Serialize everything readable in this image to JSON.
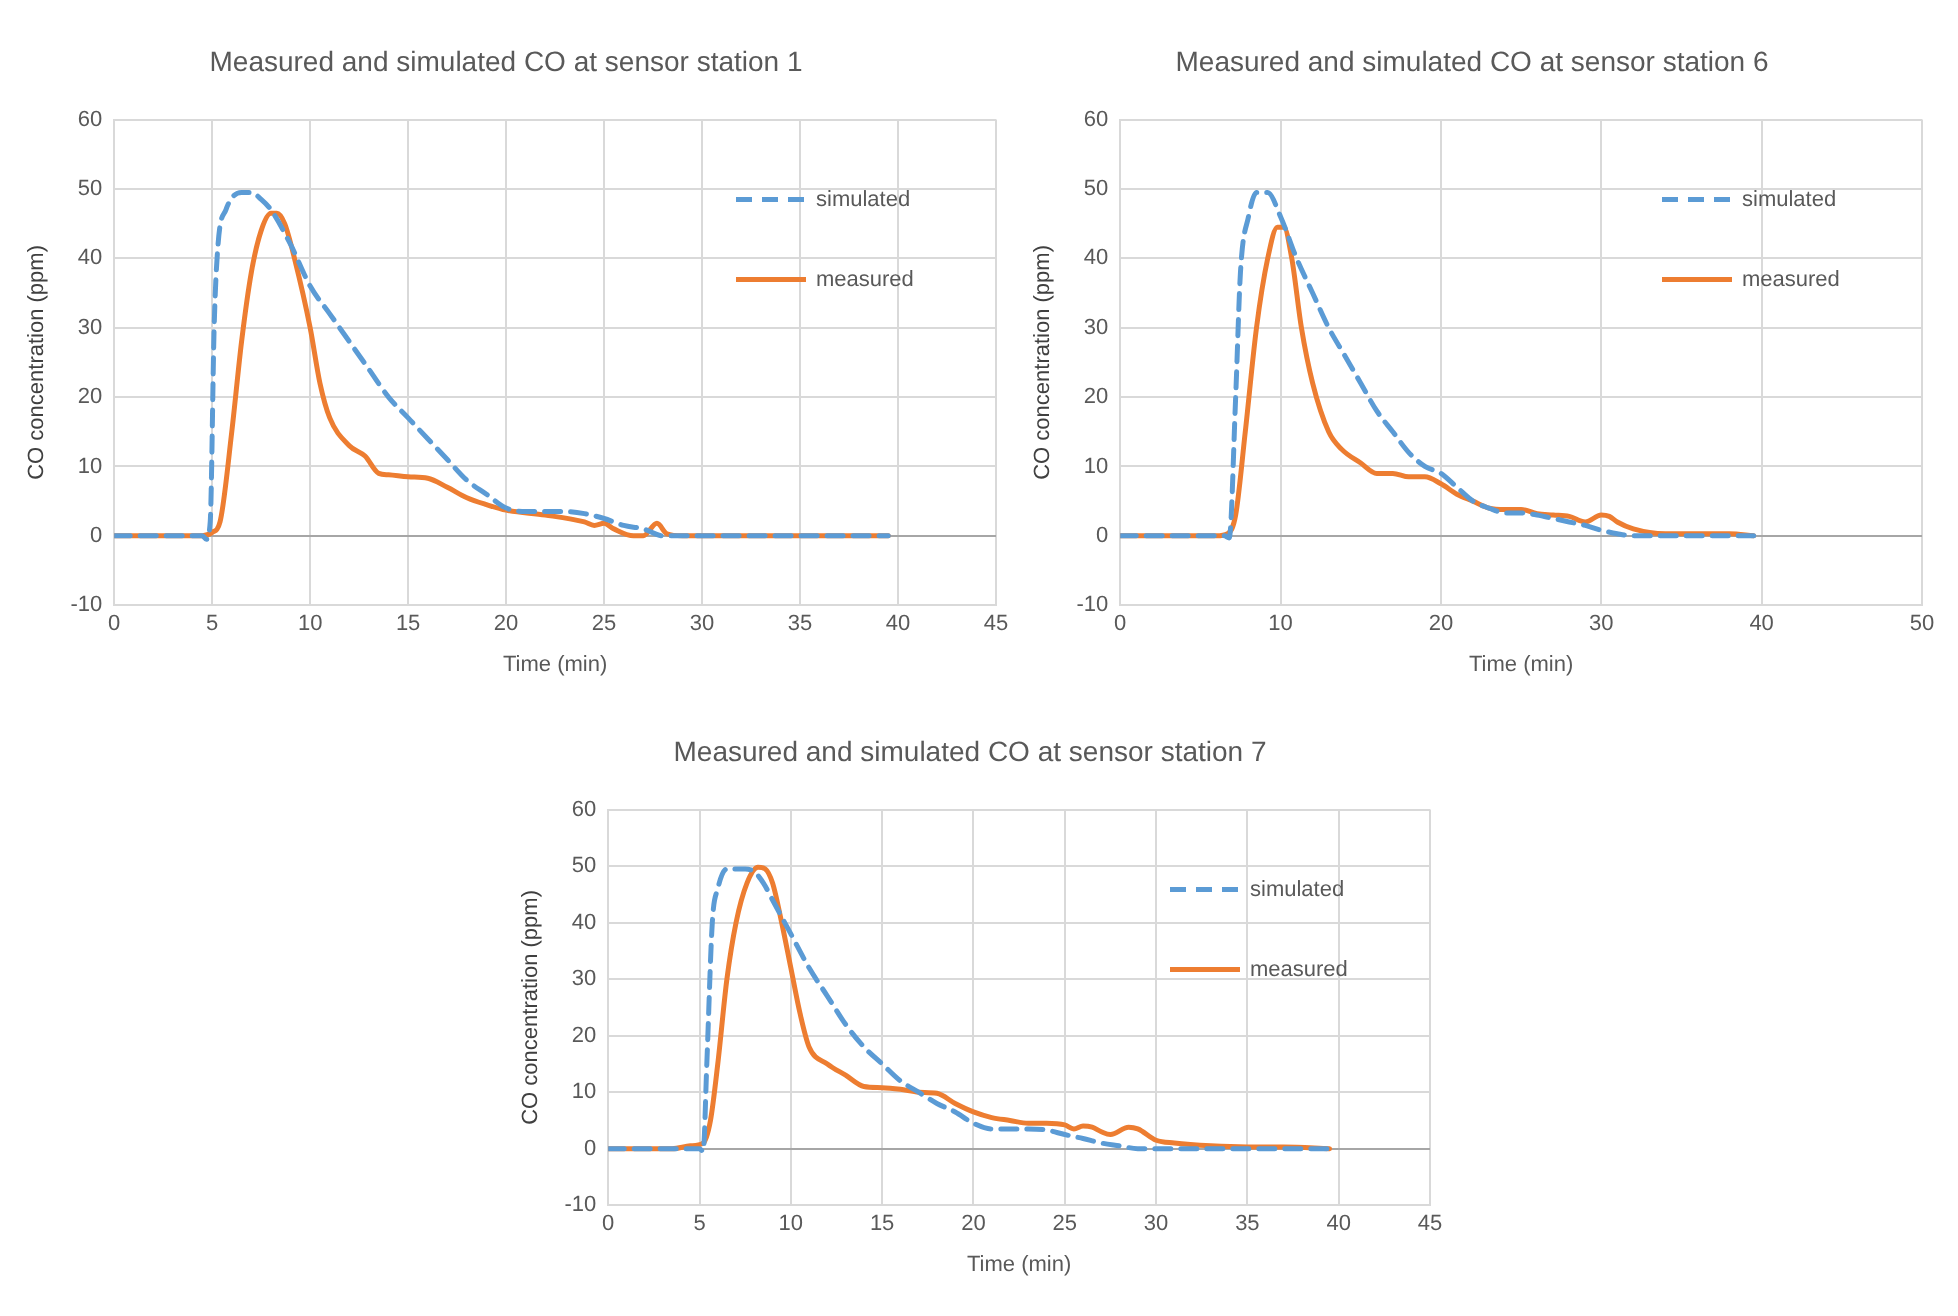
{
  "chart_data": [
    {
      "type": "line",
      "title": "Measured and simulated CO at sensor station 1",
      "xlabel": "Time (min)",
      "ylabel": "CO concentration (ppm)",
      "xlim": [
        0,
        45
      ],
      "xticks": [
        0,
        5,
        10,
        15,
        20,
        25,
        30,
        35,
        40,
        45
      ],
      "ylim": [
        -10,
        60
      ],
      "yticks": [
        -10,
        0,
        10,
        20,
        30,
        40,
        50,
        60
      ],
      "grid": true,
      "legend": "top right",
      "marker": "none",
      "series": [
        {
          "name": "simulated",
          "color": "#5b9bd5",
          "line_style": "dashed",
          "x": [
            0,
            4.5,
            4.7,
            4.9,
            5.1,
            5.3,
            5.7,
            6.5,
            7,
            7.5,
            8,
            9,
            10,
            11,
            12,
            13,
            14,
            15,
            16,
            17,
            18,
            19,
            20,
            21,
            22,
            23,
            24,
            25,
            26,
            27,
            28,
            30,
            35,
            39.5
          ],
          "values": [
            0,
            0,
            -0.5,
            2,
            30,
            42,
            47,
            49.5,
            49.5,
            48.5,
            47,
            42,
            36,
            32,
            28,
            24,
            20,
            17,
            14,
            11,
            8,
            6,
            4,
            3.5,
            3.5,
            3.5,
            3.2,
            2.5,
            1.5,
            1,
            0,
            0,
            0,
            0
          ]
        },
        {
          "name": "measured",
          "color": "#ed7d31",
          "line_style": "solid",
          "x": [
            0,
            4.5,
            5,
            5.4,
            6,
            6.5,
            7,
            7.5,
            8,
            8.3,
            8.7,
            9.2,
            10,
            10.5,
            11,
            12,
            12.8,
            13.5,
            14,
            15,
            16,
            17,
            18,
            19,
            20,
            22,
            24,
            24.5,
            25,
            25.5,
            26.5,
            27,
            27.7,
            28.2,
            29,
            35,
            39.5
          ],
          "values": [
            0,
            0,
            0.5,
            2,
            15,
            28,
            38,
            44,
            46.5,
            46.5,
            45,
            40,
            30,
            22,
            17,
            13,
            11.5,
            9,
            8.8,
            8.5,
            8.3,
            7,
            5.5,
            4.5,
            3.7,
            3,
            2,
            1.5,
            1.8,
            1,
            0,
            0,
            1.8,
            0.3,
            0,
            0,
            0
          ]
        }
      ]
    },
    {
      "type": "line",
      "title": "Measured and simulated CO at sensor station 6",
      "xlabel": "Time (min)",
      "ylabel": "CO concentration (ppm)",
      "xlim": [
        0,
        50
      ],
      "xticks": [
        0,
        10,
        20,
        30,
        40,
        50
      ],
      "ylim": [
        -10,
        60
      ],
      "yticks": [
        -10,
        0,
        10,
        20,
        30,
        40,
        50,
        60
      ],
      "grid": true,
      "legend": "top right",
      "marker": "none",
      "series": [
        {
          "name": "simulated",
          "color": "#5b9bd5",
          "line_style": "dashed",
          "x": [
            0,
            6.5,
            6.8,
            7.2,
            7.5,
            8,
            8.5,
            9.2,
            10,
            11,
            12,
            13,
            14,
            15,
            16,
            17,
            18,
            19,
            20,
            21,
            22,
            23,
            24,
            25,
            26,
            27,
            28,
            29,
            30,
            31,
            32,
            35,
            39.5
          ],
          "values": [
            0,
            0,
            -0.3,
            20,
            38,
            46,
            49.5,
            49.5,
            46,
            40,
            35,
            30,
            26,
            22,
            18,
            15,
            12,
            10,
            9,
            7,
            5,
            4,
            3.3,
            3.3,
            3,
            2.5,
            2,
            1.5,
            0.8,
            0.3,
            0,
            0,
            0
          ]
        },
        {
          "name": "measured",
          "color": "#ed7d31",
          "line_style": "solid",
          "x": [
            0,
            6,
            6.7,
            7.2,
            7.8,
            8.5,
            9.2,
            9.8,
            10.2,
            10.7,
            11.3,
            12,
            13,
            13.8,
            15,
            16,
            17,
            18,
            19,
            20,
            21,
            22,
            23,
            24,
            25,
            26,
            27,
            28,
            29,
            30,
            30.5,
            31,
            32,
            34,
            36,
            38,
            39.5
          ],
          "values": [
            0,
            0,
            0.3,
            3,
            15,
            30,
            40,
            44.5,
            44.5,
            40,
            30,
            22,
            15,
            12.5,
            10.5,
            9,
            9,
            8.5,
            8.5,
            7.5,
            6,
            5,
            4,
            3.8,
            3.8,
            3.2,
            3,
            2.8,
            2,
            3,
            2.8,
            2,
            1,
            0.3,
            0.3,
            0.3,
            0
          ]
        }
      ]
    },
    {
      "type": "line",
      "title": "Measured and simulated CO at sensor station 7",
      "xlabel": "Time (min)",
      "ylabel": "CO concentration (ppm)",
      "xlim": [
        0,
        45
      ],
      "xticks": [
        0,
        5,
        10,
        15,
        20,
        25,
        30,
        35,
        40,
        45
      ],
      "ylim": [
        -10,
        60
      ],
      "yticks": [
        -10,
        0,
        10,
        20,
        30,
        40,
        50,
        60
      ],
      "grid": true,
      "legend": "top right",
      "marker": "none",
      "series": [
        {
          "name": "simulated",
          "color": "#5b9bd5",
          "line_style": "dashed",
          "x": [
            0,
            5,
            5.2,
            5.4,
            5.7,
            6,
            6.5,
            7.5,
            8,
            8.5,
            9,
            10,
            11,
            12,
            13,
            14,
            15,
            16,
            17,
            18,
            19,
            20,
            21,
            22,
            23,
            24,
            25,
            26,
            27,
            28,
            29,
            35,
            39.5
          ],
          "values": [
            0,
            0,
            -0.5,
            15,
            40,
            46,
            49.5,
            49.5,
            49,
            47,
            44,
            38,
            32,
            27,
            22,
            18,
            15,
            12,
            10,
            8,
            6.5,
            4.5,
            3.5,
            3.5,
            3.5,
            3.3,
            2.5,
            1.8,
            1,
            0.5,
            0,
            0,
            0
          ]
        },
        {
          "name": "measured",
          "color": "#ed7d31",
          "line_style": "solid",
          "x": [
            0,
            3.5,
            4.5,
            5.2,
            5.6,
            6,
            6.5,
            7,
            7.6,
            8.2,
            8.6,
            9,
            9.5,
            10,
            10.5,
            11,
            12,
            13,
            14,
            15,
            16,
            17,
            18,
            19,
            20,
            21,
            22,
            23,
            24,
            25,
            25.5,
            26,
            26.5,
            27,
            27.5,
            28.5,
            29,
            30,
            31,
            33,
            35,
            37,
            39.5
          ],
          "values": [
            0,
            0,
            0.5,
            1,
            5,
            15,
            30,
            40,
            47,
            49.8,
            49.5,
            47,
            40,
            32,
            24,
            18,
            15,
            13,
            11,
            10.8,
            10.5,
            10,
            9.8,
            8,
            6.5,
            5.5,
            5,
            4.5,
            4.5,
            4.2,
            3.5,
            4,
            3.8,
            3,
            2.5,
            3.8,
            3.5,
            1.5,
            1,
            0.5,
            0.3,
            0.3,
            0
          ]
        }
      ]
    }
  ]
}
